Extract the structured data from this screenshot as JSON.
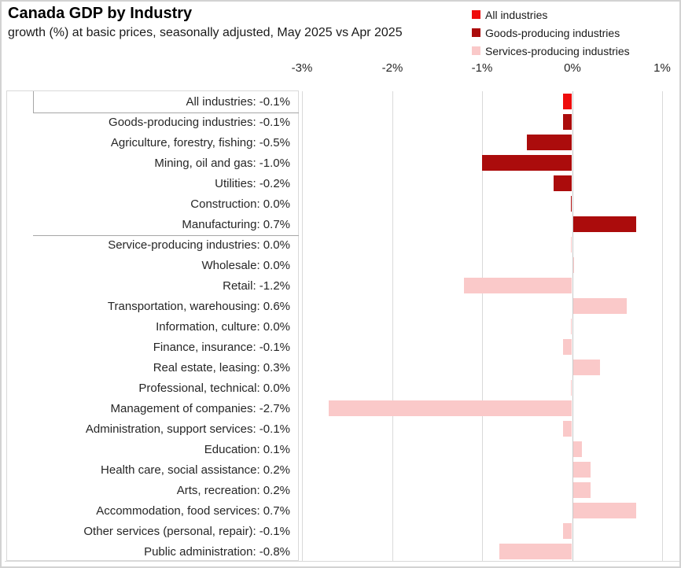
{
  "header": {
    "title": "Canada GDP by Industry",
    "subtitle": "growth (%) at basic prices, seasonally adjusted, May 2025 vs Apr 2025"
  },
  "chart_data": {
    "type": "bar",
    "orientation": "horizontal",
    "title": "Canada GDP by Industry",
    "subtitle": "growth (%) at basic prices, seasonally adjusted, May 2025 vs Apr 2025",
    "xlabel": "",
    "ylabel": "",
    "xlim": [
      -3.3,
      1.25
    ],
    "grid": true,
    "legend_position": "top-right",
    "x_ticks": [
      {
        "label": "-3%",
        "value": -3
      },
      {
        "label": "-2%",
        "value": -2
      },
      {
        "label": "-1%",
        "value": -1
      },
      {
        "label": "0%",
        "value": 0
      },
      {
        "label": "1%",
        "value": 1
      }
    ],
    "legend": [
      {
        "label": "All industries",
        "color": "#ee0d0d",
        "group": "all"
      },
      {
        "label": "Goods-producing industries",
        "color": "#ab0c0c",
        "group": "goods"
      },
      {
        "label": "Services-producing industries",
        "color": "#fac9c9",
        "group": "services"
      }
    ],
    "colors": {
      "all": "#ee0d0d",
      "goods": "#ab0c0c",
      "services": "#fac9c9"
    },
    "rows": [
      {
        "label": "All industries",
        "value": -0.1,
        "display": "All industries: -0.1%",
        "group": "all",
        "side": "left"
      },
      {
        "label": "Goods-producing industries",
        "value": -0.1,
        "display": "Goods-producing industries: -0.1%",
        "group": "goods",
        "side": "left"
      },
      {
        "label": "Agriculture, forestry, fishing",
        "value": -0.5,
        "display": "Agriculture, forestry, fishing: -0.5%",
        "group": "goods",
        "side": "left"
      },
      {
        "label": "Mining, oil and gas",
        "value": -1.0,
        "display": "Mining, oil and gas: -1.0%",
        "group": "goods",
        "side": "left"
      },
      {
        "label": "Utilities",
        "value": -0.2,
        "display": "Utilities: -0.2%",
        "group": "goods",
        "side": "left"
      },
      {
        "label": "Construction",
        "value": 0.0,
        "display": "Construction: 0.0%",
        "group": "goods",
        "side": "left"
      },
      {
        "label": "Manufacturing",
        "value": 0.7,
        "display": "Manufacturing: 0.7%",
        "group": "goods",
        "side": "right"
      },
      {
        "label": "Service-producing industries",
        "value": 0.0,
        "display": "Service-producing industries: 0.0%",
        "group": "services",
        "side": "left"
      },
      {
        "label": "Wholesale",
        "value": 0.0,
        "display": "Wholesale: 0.0%",
        "group": "services",
        "side": "right"
      },
      {
        "label": "Retail",
        "value": -1.2,
        "display": "Retail: -1.2%",
        "group": "services",
        "side": "left"
      },
      {
        "label": "Transportation, warehousing",
        "value": 0.6,
        "display": "Transportation, warehousing: 0.6%",
        "group": "services",
        "side": "right"
      },
      {
        "label": "Information, culture",
        "value": 0.0,
        "display": "Information, culture: 0.0%",
        "group": "services",
        "side": "left"
      },
      {
        "label": "Finance, insurance",
        "value": -0.1,
        "display": "Finance, insurance: -0.1%",
        "group": "services",
        "side": "left"
      },
      {
        "label": "Real estate, leasing",
        "value": 0.3,
        "display": "Real estate, leasing: 0.3%",
        "group": "services",
        "side": "right"
      },
      {
        "label": "Professional, technical",
        "value": 0.0,
        "display": "Professional, technical: 0.0%",
        "group": "services",
        "side": "left"
      },
      {
        "label": "Management of companies",
        "value": -2.7,
        "display": "Management of companies: -2.7%",
        "group": "services",
        "side": "left"
      },
      {
        "label": "Administration, support services",
        "value": -0.1,
        "display": "Administration, support services: -0.1%",
        "group": "services",
        "side": "left"
      },
      {
        "label": "Education",
        "value": 0.1,
        "display": "Education: 0.1%",
        "group": "services",
        "side": "right"
      },
      {
        "label": "Health care, social assistance",
        "value": 0.2,
        "display": "Health care, social assistance: 0.2%",
        "group": "services",
        "side": "right"
      },
      {
        "label": "Arts, recreation",
        "value": 0.2,
        "display": "Arts, recreation: 0.2%",
        "group": "services",
        "side": "right"
      },
      {
        "label": "Accommodation, food services",
        "value": 0.7,
        "display": "Accommodation, food services: 0.7%",
        "group": "services",
        "side": "right"
      },
      {
        "label": "Other services (personal, repair)",
        "value": -0.1,
        "display": "Other services (personal, repair): -0.1%",
        "group": "services",
        "side": "left"
      },
      {
        "label": "Public administration",
        "value": -0.8,
        "display": "Public administration: -0.8%",
        "group": "services",
        "side": "left"
      }
    ]
  }
}
